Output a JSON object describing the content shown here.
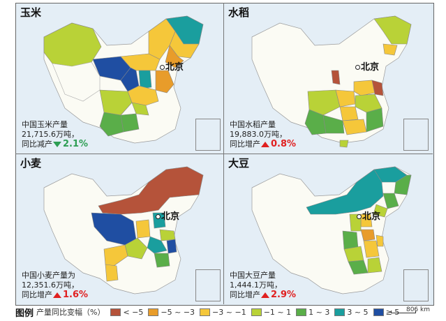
{
  "colors": {
    "lt_-5": "#b5533a",
    "-5_-3": "#e89c2a",
    "-3_-1": "#f5c73a",
    "-1_1": "#b9d237",
    "1_3": "#5aae49",
    "3_5": "#1a9e9e",
    "ge_5": "#1f4ea2"
  },
  "beijing_label": "北京",
  "panels": [
    {
      "title": "玉米",
      "line1": "中国玉米产量",
      "line2": "21,715.6万吨，",
      "line3_prefix": "同比减产",
      "change": "2.1%",
      "direction": "down"
    },
    {
      "title": "水稻",
      "line1": "中国水稻产量",
      "line2": "19,883.0万吨，",
      "line3_prefix": "同比增产",
      "change": "0.8%",
      "direction": "up"
    },
    {
      "title": "小麦",
      "line1": "中国小麦产量为",
      "line2": "12,351.6万吨，",
      "line3_prefix": "同比增产",
      "change": "1.6%",
      "direction": "up"
    },
    {
      "title": "大豆",
      "line1": "中国大豆产量",
      "line2": "1,444.1万吨，",
      "line3_prefix": "同比增产",
      "change": "2.9%",
      "direction": "up"
    }
  ],
  "legend": {
    "title": "图例",
    "subtitle": "产量同比变幅（%）",
    "items": [
      {
        "label": "< −5",
        "color_key": "lt_-5"
      },
      {
        "label": "−5 ~ −3",
        "color_key": "-5_-3"
      },
      {
        "label": "−3 ~ −1",
        "color_key": "-3_-1"
      },
      {
        "label": "−1 ~ 1",
        "color_key": "-1_1"
      },
      {
        "label": "1 ~ 3",
        "color_key": "1_3"
      },
      {
        "label": "3 ~ 5",
        "color_key": "3_5"
      },
      {
        "label": "≥ 5",
        "color_key": "ge_5"
      }
    ],
    "scale_label": "806 km"
  }
}
